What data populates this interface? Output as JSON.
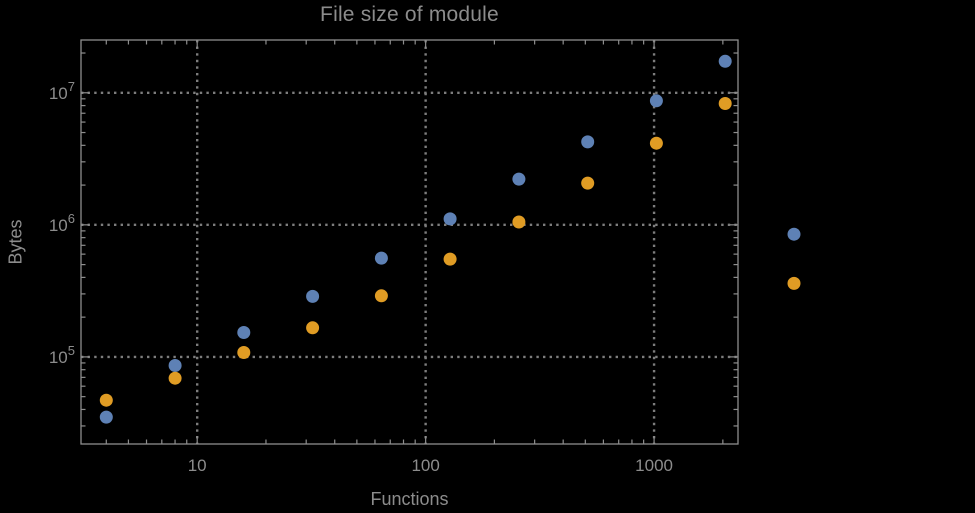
{
  "chart_data": {
    "type": "scatter",
    "title": "File size of module",
    "xlabel": "Functions",
    "ylabel": "Bytes",
    "x_scale": "log",
    "y_scale": "log",
    "grid": "dotted",
    "legend_position": "none",
    "xlim": [
      3.1,
      2330
    ],
    "ylim": [
      21900,
      25100000
    ],
    "x": [
      4,
      8,
      16,
      32,
      64,
      128,
      256,
      512,
      1024,
      2048,
      4096
    ],
    "series": [
      {
        "name": "blue",
        "color": "#5e81b5",
        "values": [
          35000,
          86000,
          153000,
          287000,
          560000,
          1110000,
          2220000,
          4250000,
          8700000,
          17300000,
          850000
        ]
      },
      {
        "name": "orange",
        "color": "#e09c24",
        "values": [
          47000,
          69000,
          108000,
          166000,
          290000,
          550000,
          1050000,
          2070000,
          4150000,
          8300000,
          360000
        ]
      }
    ],
    "x_ticks": [
      {
        "label": "10",
        "value": 10
      },
      {
        "label": "100",
        "value": 100
      },
      {
        "label": "1000",
        "value": 1000
      }
    ],
    "y_ticks": [
      {
        "mantissa": "10",
        "exponent": "5",
        "value": 100000
      },
      {
        "mantissa": "10",
        "exponent": "6",
        "value": 1000000
      },
      {
        "mantissa": "10",
        "exponent": "7",
        "value": 10000000
      }
    ],
    "colors": {
      "background": "#000000",
      "frame": "#8e8e8e",
      "grid": "#7d7d7d",
      "text": "#8c8c8c"
    },
    "marker_radius": 6.5
  }
}
